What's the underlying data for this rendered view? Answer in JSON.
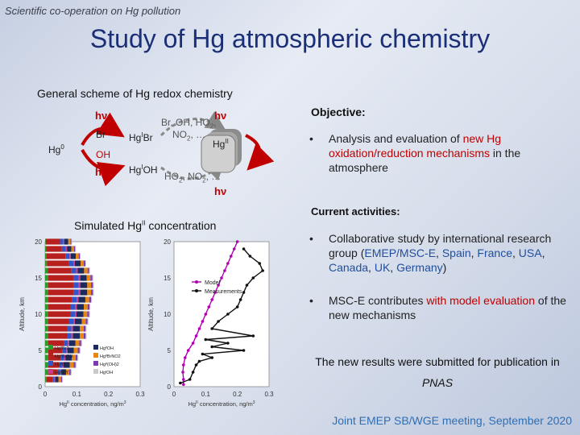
{
  "header_tag": "Scientific co-operation on Hg pollution",
  "title": "Study of Hg atmospheric chemistry",
  "scheme": {
    "heading": "General scheme of Hg redox chemistry",
    "hv": "hν",
    "hg0": "Hg",
    "hg0_sup": "0",
    "br": "Br",
    "oh": "OH",
    "hgbr_a": "Hg",
    "hgbr_sup": "I",
    "hgbr_b": "Br",
    "hgoh_a": "Hg",
    "hgoh_sup": "I",
    "hgoh_b": "OH",
    "oxid_line1": "Br, OH, HO",
    "oxid_line1_sub": "2",
    "oxid_line1_end": ",",
    "oxid_line2": "NO",
    "oxid_line2_sub": "2",
    "oxid_line2_end": ", …",
    "reduct_a": "HO",
    "reduct_sub": "2",
    "reduct_b": ", NO",
    "reduct_sub2": "2",
    "reduct_end": ", …",
    "hgII_a": "Hg",
    "hgII_sup": "II"
  },
  "simulated": {
    "heading_a": "Simulated Hg",
    "heading_sup": "II",
    "heading_b": " concentration"
  },
  "objective": {
    "heading": "Objective:",
    "bullet": "•",
    "text_a": "Analysis and evaluation of ",
    "text_red": "new Hg oxidation/reduction mechanisms",
    "text_b": " in the atmosphere"
  },
  "current": {
    "heading": "Current activities:",
    "bullet": "•",
    "item1_a": "Collaborative study by international research group (",
    "item1_b": "EMEP/MSC-E",
    "item1_c": ", ",
    "item1_d": "Spain",
    "item1_e": ", ",
    "item1_f": "France",
    "item1_g": ", ",
    "item1_h": "USA",
    "item1_i": ", ",
    "item1_j": "Canada",
    "item1_k": ", ",
    "item1_l": "UK",
    "item1_m": ", ",
    "item1_n": "Germany",
    "item1_o": ")",
    "item2_a": "MSC-E contributes ",
    "item2_b": "with model evaluation",
    "item2_c": " of the new mechanisms"
  },
  "result_note_a": "The new results were submitted for publication in ",
  "result_note_b": "PNAS",
  "footer": "Joint EMEP SB/WGE meeting, September 2020",
  "chart_data": [
    {
      "type": "bar",
      "stacked": true,
      "orientation": "horizontal",
      "xlabel": "Hg",
      "xlabel_sup": "II",
      "xlabel_b": " concentration, ng/m",
      "xlabel_sup2": "3",
      "ylabel": "Altitude, km",
      "xlim": [
        0,
        0.3
      ],
      "ylim": [
        0,
        20
      ],
      "xticks": [
        "0",
        "0.1",
        "0.2",
        "0.3"
      ],
      "yticks": [
        "0",
        "5",
        "10",
        "15",
        "20"
      ],
      "legend": [
        "HgᴵᴵBr2",
        "HgᴵᴵBrOH",
        "HgᴵᴵBr",
        "HgᴵBrY",
        "HgᴵᴵOH",
        "HgᴵᴵBrNO2",
        "Hgᴵᴵ(OH)2",
        "HgᴵOH"
      ],
      "legend_colors": [
        "#2b9a2b",
        "#b81f1f",
        "#3455c8",
        "#c83c8c",
        "#1d2a5e",
        "#e8870f",
        "#7b3ab0",
        "#c9c9c9"
      ],
      "altitudes": [
        1,
        2,
        3,
        4,
        5,
        6,
        7,
        8,
        9,
        10,
        11,
        12,
        13,
        14,
        15,
        16,
        17,
        18,
        19,
        20
      ],
      "series": [
        {
          "name": "HgᴵᴵBr2",
          "values": [
            0.005,
            0.01,
            0.01,
            0.01,
            0.01,
            0.01,
            0.01,
            0.01,
            0.01,
            0.01,
            0.01,
            0.01,
            0.01,
            0.01,
            0.01,
            0.008,
            0.006,
            0.004,
            0.003,
            0.002
          ]
        },
        {
          "name": "HgᴵᴵBrOH",
          "values": [
            0.02,
            0.03,
            0.035,
            0.04,
            0.045,
            0.05,
            0.06,
            0.06,
            0.065,
            0.07,
            0.07,
            0.075,
            0.08,
            0.08,
            0.08,
            0.075,
            0.07,
            0.06,
            0.05,
            0.045
          ]
        },
        {
          "name": "HgᴵᴵBr",
          "values": [
            0.005,
            0.008,
            0.01,
            0.01,
            0.012,
            0.012,
            0.013,
            0.013,
            0.014,
            0.014,
            0.015,
            0.015,
            0.016,
            0.016,
            0.016,
            0.015,
            0.014,
            0.013,
            0.012,
            0.011
          ]
        },
        {
          "name": "HgᴵBrY",
          "values": [
            0.002,
            0.003,
            0.003,
            0.004,
            0.004,
            0.004,
            0.005,
            0.005,
            0.005,
            0.005,
            0.005,
            0.005,
            0.005,
            0.005,
            0.005,
            0.005,
            0.004,
            0.004,
            0.004,
            0.003
          ]
        },
        {
          "name": "HgᴵᴵOH",
          "values": [
            0.01,
            0.015,
            0.02,
            0.02,
            0.02,
            0.02,
            0.022,
            0.022,
            0.022,
            0.022,
            0.022,
            0.022,
            0.022,
            0.022,
            0.02,
            0.02,
            0.018,
            0.016,
            0.014,
            0.012
          ]
        },
        {
          "name": "HgᴵᴵBrNO2",
          "values": [
            0.008,
            0.01,
            0.012,
            0.012,
            0.012,
            0.012,
            0.012,
            0.012,
            0.012,
            0.012,
            0.012,
            0.012,
            0.012,
            0.012,
            0.012,
            0.011,
            0.01,
            0.009,
            0.008,
            0.007
          ]
        },
        {
          "name": "Hgᴵᴵ(OH)2",
          "values": [
            0.004,
            0.005,
            0.006,
            0.006,
            0.006,
            0.006,
            0.006,
            0.006,
            0.006,
            0.006,
            0.006,
            0.006,
            0.006,
            0.006,
            0.006,
            0.005,
            0.005,
            0.004,
            0.004,
            0.003
          ]
        },
        {
          "name": "HgᴵOH",
          "values": [
            0.002,
            0.003,
            0.003,
            0.003,
            0.003,
            0.003,
            0.003,
            0.003,
            0.003,
            0.003,
            0.003,
            0.003,
            0.003,
            0.003,
            0.003,
            0.003,
            0.002,
            0.002,
            0.002,
            0.002
          ]
        }
      ]
    },
    {
      "type": "line",
      "xlabel": "Hg",
      "xlabel_sup": "II",
      "xlabel_b": " concentration, ng/m",
      "xlabel_sup2": "3",
      "ylabel": "Altitude, km",
      "xlim": [
        0,
        0.3
      ],
      "ylim": [
        0,
        20
      ],
      "xticks": [
        "0",
        "0.1",
        "0.2",
        "0.3"
      ],
      "yticks": [
        "0",
        "5",
        "10",
        "15",
        "20"
      ],
      "series": [
        {
          "name": "Model",
          "color": "#b000b0",
          "points": [
            [
              0.03,
              0.3
            ],
            [
              0.03,
              1.0
            ],
            [
              0.028,
              2.0
            ],
            [
              0.03,
              3.0
            ],
            [
              0.035,
              4.0
            ],
            [
              0.045,
              5.0
            ],
            [
              0.06,
              6.0
            ],
            [
              0.07,
              7.0
            ],
            [
              0.08,
              8.0
            ],
            [
              0.09,
              9.0
            ],
            [
              0.1,
              10.0
            ],
            [
              0.11,
              11.0
            ],
            [
              0.12,
              12.0
            ],
            [
              0.13,
              13.0
            ],
            [
              0.14,
              14.0
            ],
            [
              0.15,
              15.0
            ],
            [
              0.16,
              16.0
            ],
            [
              0.17,
              17.0
            ],
            [
              0.18,
              18.0
            ],
            [
              0.19,
              19.0
            ],
            [
              0.2,
              20.0
            ]
          ]
        },
        {
          "name": "Measurements",
          "color": "#111111",
          "points": [
            [
              0.02,
              0.5
            ],
            [
              0.05,
              1.0
            ],
            [
              0.06,
              2.0
            ],
            [
              0.07,
              3.0
            ],
            [
              0.08,
              3.5
            ],
            [
              0.12,
              4.0
            ],
            [
              0.09,
              4.5
            ],
            [
              0.22,
              5.0
            ],
            [
              0.12,
              5.5
            ],
            [
              0.17,
              6.0
            ],
            [
              0.1,
              6.5
            ],
            [
              0.25,
              7.0
            ],
            [
              0.12,
              8.0
            ],
            [
              0.14,
              9.0
            ],
            [
              0.17,
              10.0
            ],
            [
              0.2,
              11.0
            ],
            [
              0.21,
              12.0
            ],
            [
              0.22,
              13.0
            ],
            [
              0.23,
              14.0
            ],
            [
              0.25,
              15.0
            ],
            [
              0.28,
              16.0
            ],
            [
              0.27,
              17.0
            ],
            [
              0.24,
              18.0
            ],
            [
              0.22,
              19.0
            ]
          ]
        }
      ]
    }
  ]
}
